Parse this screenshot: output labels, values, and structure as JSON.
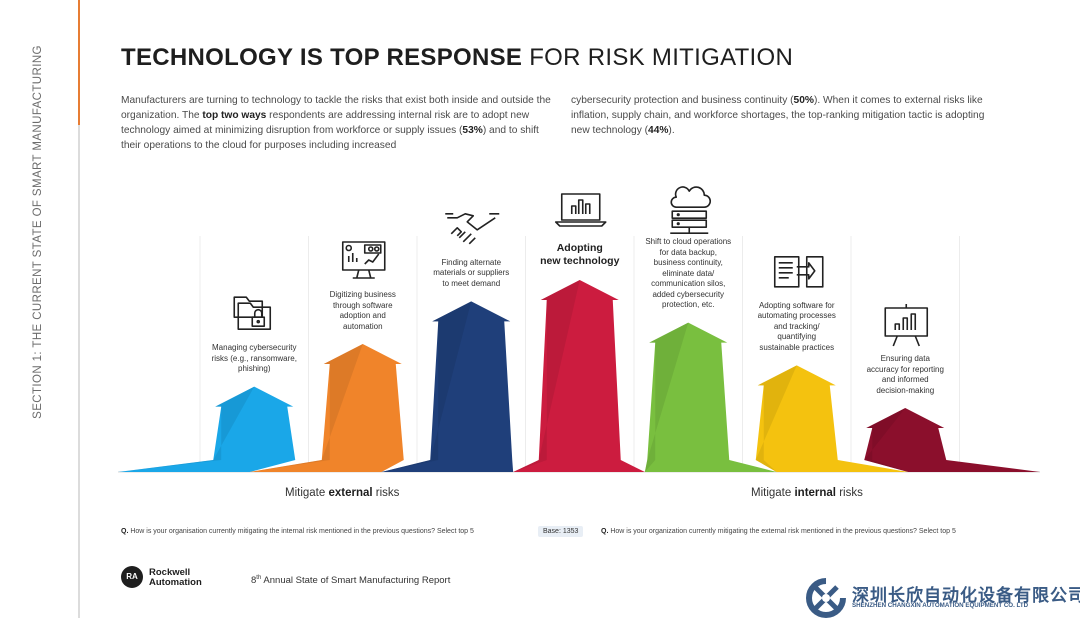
{
  "sidebar": {
    "section_label": "SECTION 1: THE CURRENT STATE OF SMART MANUFACTURING"
  },
  "header": {
    "title_bold": "TECHNOLOGY IS TOP RESPONSE",
    "title_light": " FOR RISK MITIGATION"
  },
  "intro": {
    "p1_a": "Manufacturers are turning to technology to tackle the risks that exist both inside and outside the organization. The ",
    "p1_b": "top two ways",
    "p1_c": " respondents are addressing internal risk are to adopt new technology aimed at minimizing disruption from workforce or supply issues (",
    "p1_d": "53%",
    "p1_e": ") and to shift their operations to the cloud for purposes including increased",
    "p2_a": "cybersecurity protection and business continuity (",
    "p2_b": "50%",
    "p2_c": "). When it comes to external risks like inflation, supply chain, and workforce shortages, the top-ranking mitigation tactic is adopting new technology (",
    "p2_d": "44%",
    "p2_e": ")."
  },
  "chart_data": {
    "type": "bar",
    "categories": [
      "Managing cybersecurity risks (e.g., ransomware, phishing)",
      "Digitizing business through software adoption and automation",
      "Finding alternate materials or suppliers to meet demand",
      "Adopting new technology",
      "Shift to cloud operations for data backup, business continuity, eliminate data/ communication silos, added cybersecurity protection, etc.",
      "Adopting software for automating processes and tracking/ quantifying sustainable practices",
      "Ensuring data accuracy for reporting and informed decision-making"
    ],
    "label_lines": [
      [
        "Managing cybersecurity",
        "risks (e.g., ransomware,",
        "phishing)"
      ],
      [
        "Digitizing business",
        "through software",
        "adoption and",
        "automation"
      ],
      [
        "Finding alternate",
        "materials or suppliers",
        "to meet demand"
      ],
      [
        "Adopting",
        "new technology"
      ],
      [
        "Shift to cloud operations",
        "for data backup,",
        "business continuity,",
        "eliminate data/",
        "communication silos,",
        "added cybersecurity",
        "protection, etc."
      ],
      [
        "Adopting software for",
        "automating processes",
        "and tracking/",
        "quantifying",
        "sustainable practices"
      ],
      [
        "Ensuring data",
        "accuracy for reporting",
        "and informed",
        "decision-making"
      ]
    ],
    "colors": [
      "#1aa7e8",
      "#f0842a",
      "#1f3f7a",
      "#cc1c3f",
      "#79bf3f",
      "#f4c20f",
      "#8b0f2c"
    ],
    "icons": [
      "folder-lock-icon",
      "dashboard-monitor-icon",
      "handshake-icon",
      "laptop-chart-icon",
      "cloud-server-icon",
      "document-transfer-icon",
      "presentation-chart-icon"
    ],
    "values": [
      2,
      4,
      6,
      7,
      5,
      3,
      1
    ],
    "groups": [
      "Mitigate external risks",
      "Mitigate internal risks"
    ]
  },
  "legend": {
    "external_a": "Mitigate ",
    "external_b": "external",
    "external_c": " risks",
    "internal_a": "Mitigate ",
    "internal_b": "internal",
    "internal_c": " risks"
  },
  "footnotes": {
    "q_label": "Q.",
    "q1": " How is your organisation currently mitigating the internal risk mentioned in the previous questions? Select top 5",
    "base": "Base: 1353",
    "q2": " How is your organization currently mitigating the external risk mentioned in the previous questions? Select top 5"
  },
  "footer": {
    "logo_mark": "RA",
    "brand_line1": "Rockwell",
    "brand_line2": "Automation",
    "report_num": "8",
    "report_sup": "th",
    "report_text": " Annual State of Smart Manufacturing Report",
    "company_cn": "深圳长欣自动化设备有限公司",
    "company_en": "SHENZHEN CHANGXIN AUTOMATION EQUIPMENT CO. LTD"
  }
}
